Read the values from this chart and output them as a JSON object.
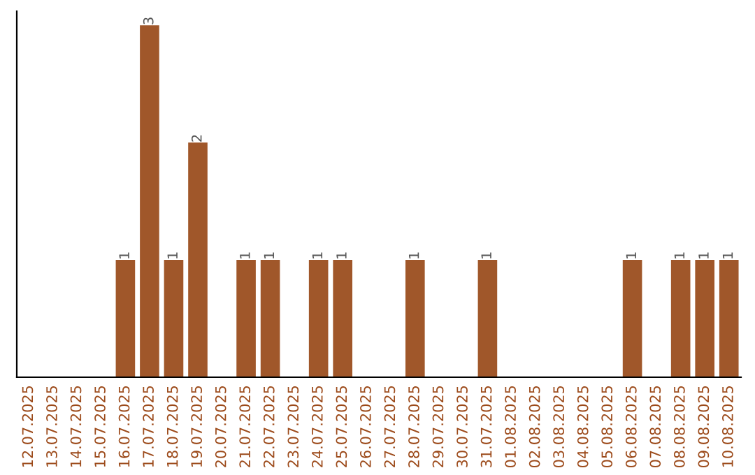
{
  "chart_data": {
    "type": "bar",
    "categories": [
      "12.07.2025",
      "13.07.2025",
      "14.07.2025",
      "15.07.2025",
      "16.07.2025",
      "17.07.2025",
      "18.07.2025",
      "19.07.2025",
      "20.07.2025",
      "21.07.2025",
      "22.07.2025",
      "23.07.2025",
      "24.07.2025",
      "25.07.2025",
      "26.07.2025",
      "27.07.2025",
      "28.07.2025",
      "29.07.2025",
      "30.07.2025",
      "31.07.2025",
      "01.08.2025",
      "02.08.2025",
      "03.08.2025",
      "04.08.2025",
      "05.08.2025",
      "06.08.2025",
      "07.08.2025",
      "08.08.2025",
      "09.08.2025",
      "10.08.2025"
    ],
    "values": [
      0,
      0,
      0,
      0,
      1,
      3,
      1,
      2,
      0,
      1,
      1,
      0,
      1,
      1,
      0,
      0,
      1,
      0,
      0,
      1,
      0,
      0,
      0,
      0,
      0,
      1,
      0,
      1,
      1,
      1
    ],
    "value_labels": [
      null,
      null,
      null,
      null,
      "1",
      "3",
      "1",
      "2",
      null,
      "1",
      "1",
      null,
      "1",
      "1",
      null,
      null,
      "1",
      null,
      null,
      "1",
      null,
      null,
      null,
      null,
      null,
      "1",
      null,
      "1",
      "1",
      "1"
    ],
    "color": "#a0572a",
    "grid": false,
    "legend": false
  }
}
